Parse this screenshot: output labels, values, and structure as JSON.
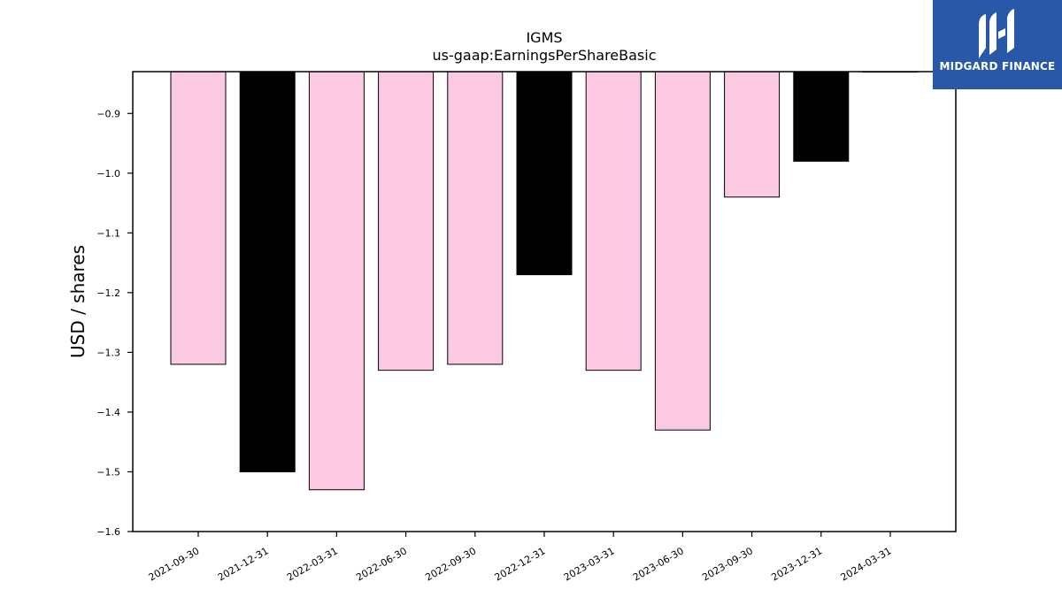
{
  "logo": {
    "text": "MIDGARD FINANCE",
    "background": "#2a58a8"
  },
  "chart_data": {
    "type": "bar",
    "title": "IGMS",
    "subtitle": "us-gaap:EarningsPerShareBasic",
    "xlabel": "",
    "ylabel": "USD / shares",
    "categories": [
      "2021-09-30",
      "2021-12-31",
      "2022-03-31",
      "2022-06-30",
      "2022-09-30",
      "2022-12-31",
      "2023-03-31",
      "2023-06-30",
      "2023-09-30",
      "2023-12-31",
      "2024-03-31"
    ],
    "values": [
      -1.32,
      -1.5,
      -1.53,
      -1.33,
      -1.32,
      -1.17,
      -1.33,
      -1.43,
      -1.04,
      -0.98,
      -0.83
    ],
    "bar_colors": [
      "#fcc9e3",
      "#000000",
      "#fcc9e3",
      "#fcc9e3",
      "#fcc9e3",
      "#000000",
      "#fcc9e3",
      "#fcc9e3",
      "#fcc9e3",
      "#000000",
      "#fcc9e3"
    ],
    "ylim": [
      -1.6,
      -0.83
    ],
    "yticks": [
      -1.6,
      -1.5,
      -1.4,
      -1.3,
      -1.2,
      -1.1,
      -1.0,
      -0.9
    ],
    "ytick_labels": [
      "−1.6",
      "−1.5",
      "−1.4",
      "−1.3",
      "−1.2",
      "−1.1",
      "−1.0",
      "−0.9"
    ],
    "grid": false,
    "legend": "none"
  }
}
